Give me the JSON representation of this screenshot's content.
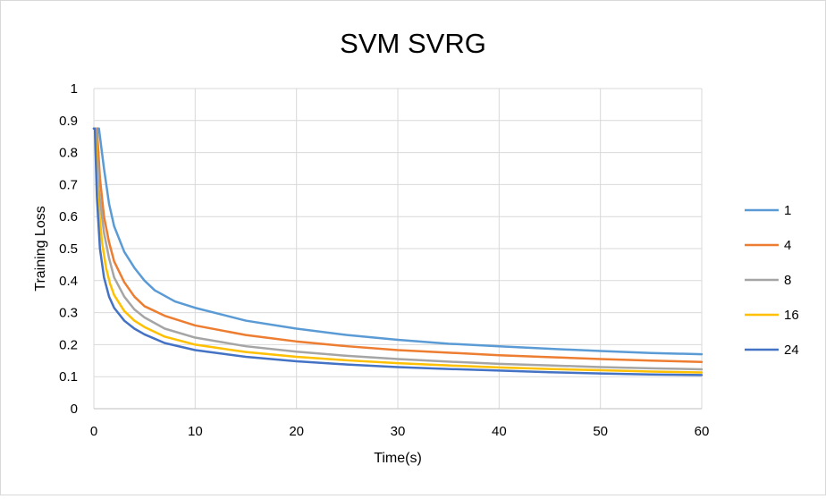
{
  "chart_data": {
    "type": "line",
    "title": "SVM SVRG",
    "xlabel": "Time(s)",
    "ylabel": "Training Loss",
    "xlim": [
      0,
      60
    ],
    "ylim": [
      0,
      1
    ],
    "xticks": [
      0,
      10,
      20,
      30,
      40,
      50,
      60
    ],
    "yticks": [
      0,
      0.1,
      0.2,
      0.3,
      0.4,
      0.5,
      0.6,
      0.7,
      0.8,
      0.9,
      1
    ],
    "grid": true,
    "legend_position": "right",
    "series": [
      {
        "name": "1",
        "color": "#5b9bd5",
        "x": [
          0,
          0.5,
          1,
          1.5,
          2,
          3,
          4,
          5,
          6,
          8,
          10,
          15,
          20,
          25,
          30,
          35,
          40,
          45,
          50,
          55,
          60
        ],
        "y": [
          0.875,
          0.875,
          0.75,
          0.64,
          0.57,
          0.49,
          0.44,
          0.4,
          0.37,
          0.335,
          0.315,
          0.275,
          0.25,
          0.23,
          0.215,
          0.203,
          0.195,
          0.187,
          0.18,
          0.174,
          0.17
        ]
      },
      {
        "name": "4",
        "color": "#ed7d31",
        "x": [
          0,
          0.3,
          0.6,
          1,
          1.5,
          2,
          3,
          4,
          5,
          7,
          10,
          15,
          20,
          25,
          30,
          35,
          40,
          45,
          50,
          55,
          60
        ],
        "y": [
          0.875,
          0.875,
          0.72,
          0.6,
          0.52,
          0.46,
          0.395,
          0.35,
          0.32,
          0.29,
          0.26,
          0.23,
          0.21,
          0.195,
          0.183,
          0.175,
          0.167,
          0.161,
          0.155,
          0.15,
          0.146
        ]
      },
      {
        "name": "8",
        "color": "#a5a5a5",
        "x": [
          0,
          0.2,
          0.5,
          1,
          1.5,
          2,
          3,
          4,
          5,
          7,
          10,
          15,
          20,
          25,
          30,
          35,
          40,
          45,
          50,
          55,
          60
        ],
        "y": [
          0.875,
          0.875,
          0.68,
          0.55,
          0.47,
          0.41,
          0.35,
          0.31,
          0.285,
          0.25,
          0.222,
          0.195,
          0.178,
          0.165,
          0.155,
          0.147,
          0.14,
          0.135,
          0.13,
          0.126,
          0.123
        ]
      },
      {
        "name": "16",
        "color": "#ffc000",
        "x": [
          0,
          0.15,
          0.4,
          0.8,
          1.2,
          1.6,
          2,
          3,
          4,
          5,
          7,
          10,
          15,
          20,
          25,
          30,
          35,
          40,
          45,
          50,
          55,
          60
        ],
        "y": [
          0.875,
          0.875,
          0.66,
          0.52,
          0.44,
          0.39,
          0.355,
          0.305,
          0.275,
          0.255,
          0.225,
          0.2,
          0.177,
          0.162,
          0.151,
          0.142,
          0.135,
          0.129,
          0.124,
          0.12,
          0.116,
          0.113
        ]
      },
      {
        "name": "24",
        "color": "#4472c4",
        "x": [
          0,
          0.1,
          0.3,
          0.6,
          1,
          1.5,
          2,
          3,
          4,
          5,
          7,
          10,
          15,
          20,
          25,
          30,
          35,
          40,
          45,
          50,
          55,
          60
        ],
        "y": [
          0.875,
          0.875,
          0.66,
          0.5,
          0.41,
          0.35,
          0.315,
          0.275,
          0.25,
          0.232,
          0.205,
          0.183,
          0.162,
          0.148,
          0.138,
          0.13,
          0.124,
          0.119,
          0.114,
          0.11,
          0.107,
          0.105
        ]
      }
    ]
  }
}
